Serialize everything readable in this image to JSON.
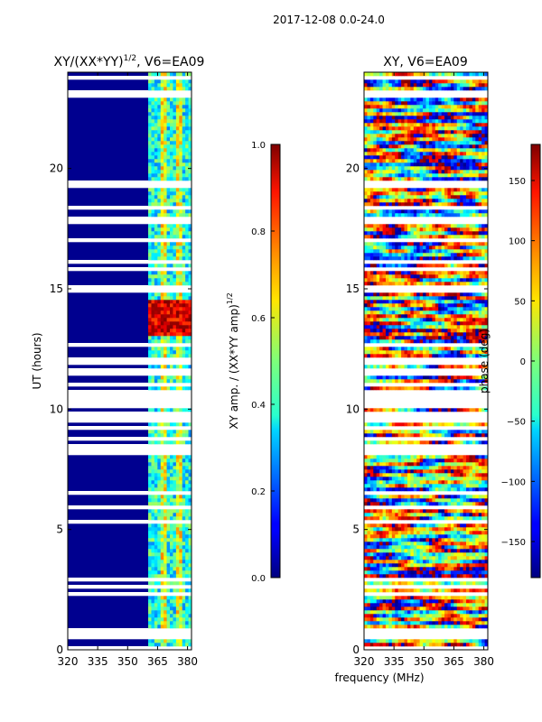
{
  "figure": {
    "suptitle": "2017-12-08 0.0-24.0",
    "xlabel_shared": "frequency (MHz)"
  },
  "chart_data": [
    {
      "type": "heatmap",
      "title_main": "XY/(XX*YY)",
      "title_sup": "1/2",
      "title_tail": ", V6=EA09",
      "ylabel": "UT (hours)",
      "xticks": [
        "320",
        "335",
        "350",
        "365",
        "380"
      ],
      "xtick_values": [
        320,
        335,
        350,
        365,
        380
      ],
      "xlim": [
        320,
        382
      ],
      "yticks": [
        "0",
        "5",
        "10",
        "15",
        "20"
      ],
      "ytick_values": [
        0,
        5,
        10,
        15,
        20
      ],
      "ylim": [
        0,
        24
      ],
      "colorbar": {
        "label_main": "XY amp. / (XX*YY amp)",
        "label_sup": "1/2",
        "ticks": [
          "0.0",
          "0.2",
          "0.4",
          "0.6",
          "0.8",
          "1.0"
        ],
        "tick_values": [
          0.0,
          0.2,
          0.4,
          0.6,
          0.8,
          1.0
        ],
        "range": [
          0.0,
          1.0
        ]
      }
    },
    {
      "type": "heatmap",
      "title": "XY, V6=EA09",
      "ylabel": "",
      "xticks": [
        "320",
        "335",
        "350",
        "365",
        "380"
      ],
      "xtick_values": [
        320,
        335,
        350,
        365,
        380
      ],
      "xlim": [
        320,
        382
      ],
      "yticks": [
        "0",
        "5",
        "10",
        "15",
        "20"
      ],
      "ytick_values": [
        0,
        5,
        10,
        15,
        20
      ],
      "ylim": [
        0,
        24
      ],
      "colorbar": {
        "label": "phase (deg)",
        "ticks": [
          "−150",
          "−100",
          "−50",
          "0",
          "50",
          "100",
          "150"
        ],
        "tick_values": [
          -150,
          -100,
          -50,
          0,
          50,
          100,
          150
        ],
        "range": [
          -180,
          180
        ]
      }
    }
  ]
}
